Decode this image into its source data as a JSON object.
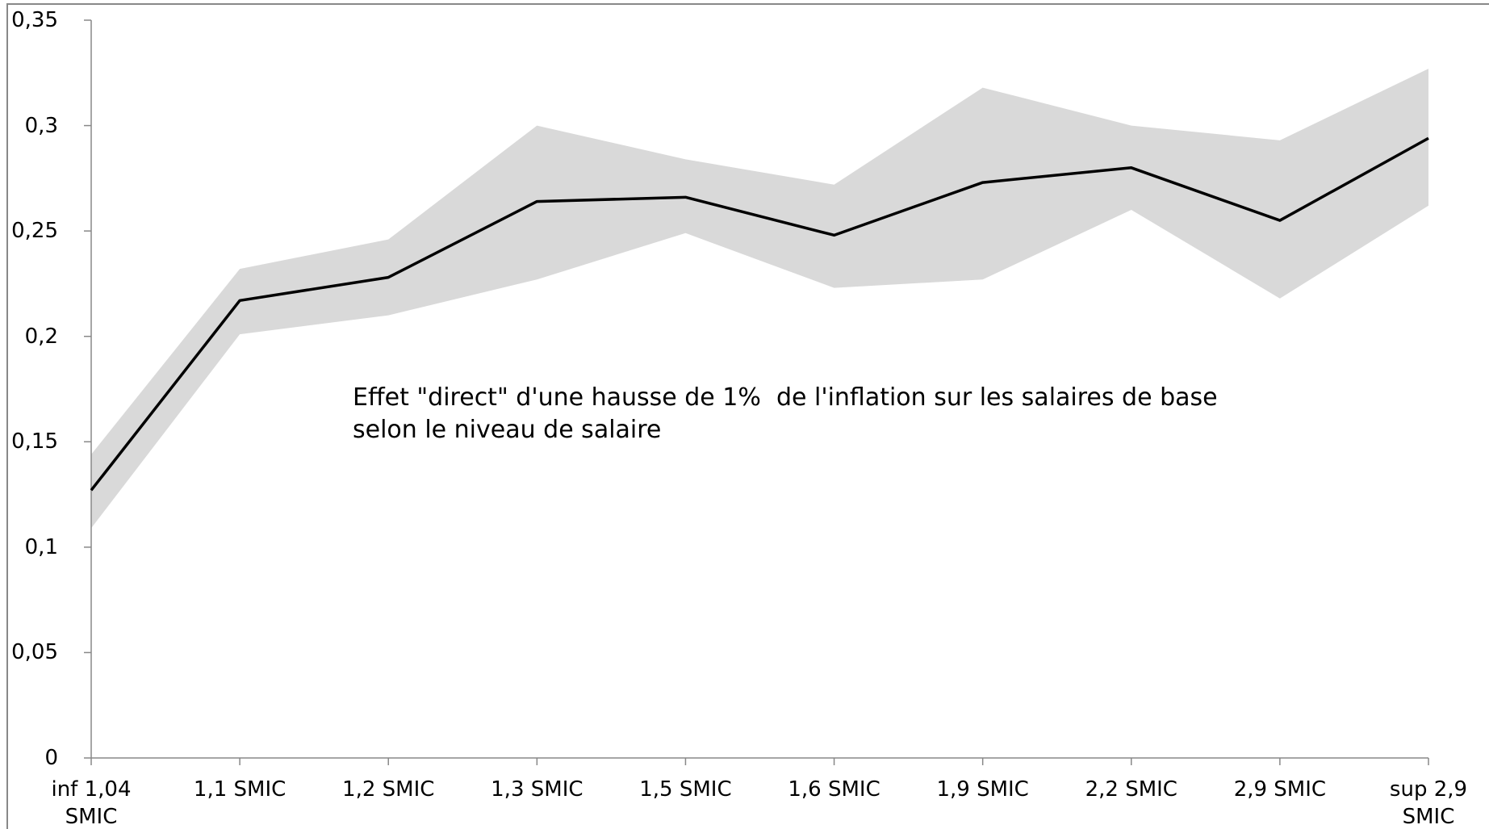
{
  "chart_data": {
    "type": "line",
    "categories": [
      "inf 1,04\nSMIC",
      "1,1 SMIC",
      "1,2 SMIC",
      "1,3 SMIC",
      "1,5 SMIC",
      "1,6 SMIC",
      "1,9 SMIC",
      "2,2 SMIC",
      "2,9 SMIC",
      "sup 2,9\nSMIC"
    ],
    "values": [
      0.127,
      0.217,
      0.228,
      0.264,
      0.266,
      0.248,
      0.273,
      0.28,
      0.255,
      0.294
    ],
    "color": "#000000",
    "band": {
      "color": "#d9d9d9",
      "upper": [
        0.144,
        0.232,
        0.246,
        0.3,
        0.284,
        0.272,
        0.318,
        0.3,
        0.293,
        0.327
      ],
      "lower": [
        0.109,
        0.201,
        0.21,
        0.227,
        0.249,
        0.223,
        0.227,
        0.26,
        0.218,
        0.262
      ]
    },
    "ylim": [
      0,
      0.35
    ],
    "yticks": [
      0,
      {
        "value": 0.05,
        "label": "0,05"
      },
      {
        "value": 0.1,
        "label": "0,1"
      },
      {
        "value": 0.15,
        "label": "0,15"
      },
      {
        "value": 0.2,
        "label": "0,2"
      },
      {
        "value": 0.25,
        "label": "0,25"
      },
      {
        "value": 0.3,
        "label": "0,3"
      },
      {
        "value": 0.35,
        "label": "0,35"
      }
    ],
    "annotations": [
      "Effet \"direct\" d'une hausse de 1%  de l'inflation sur les salaires de base",
      "selon le niveau de salaire"
    ]
  }
}
